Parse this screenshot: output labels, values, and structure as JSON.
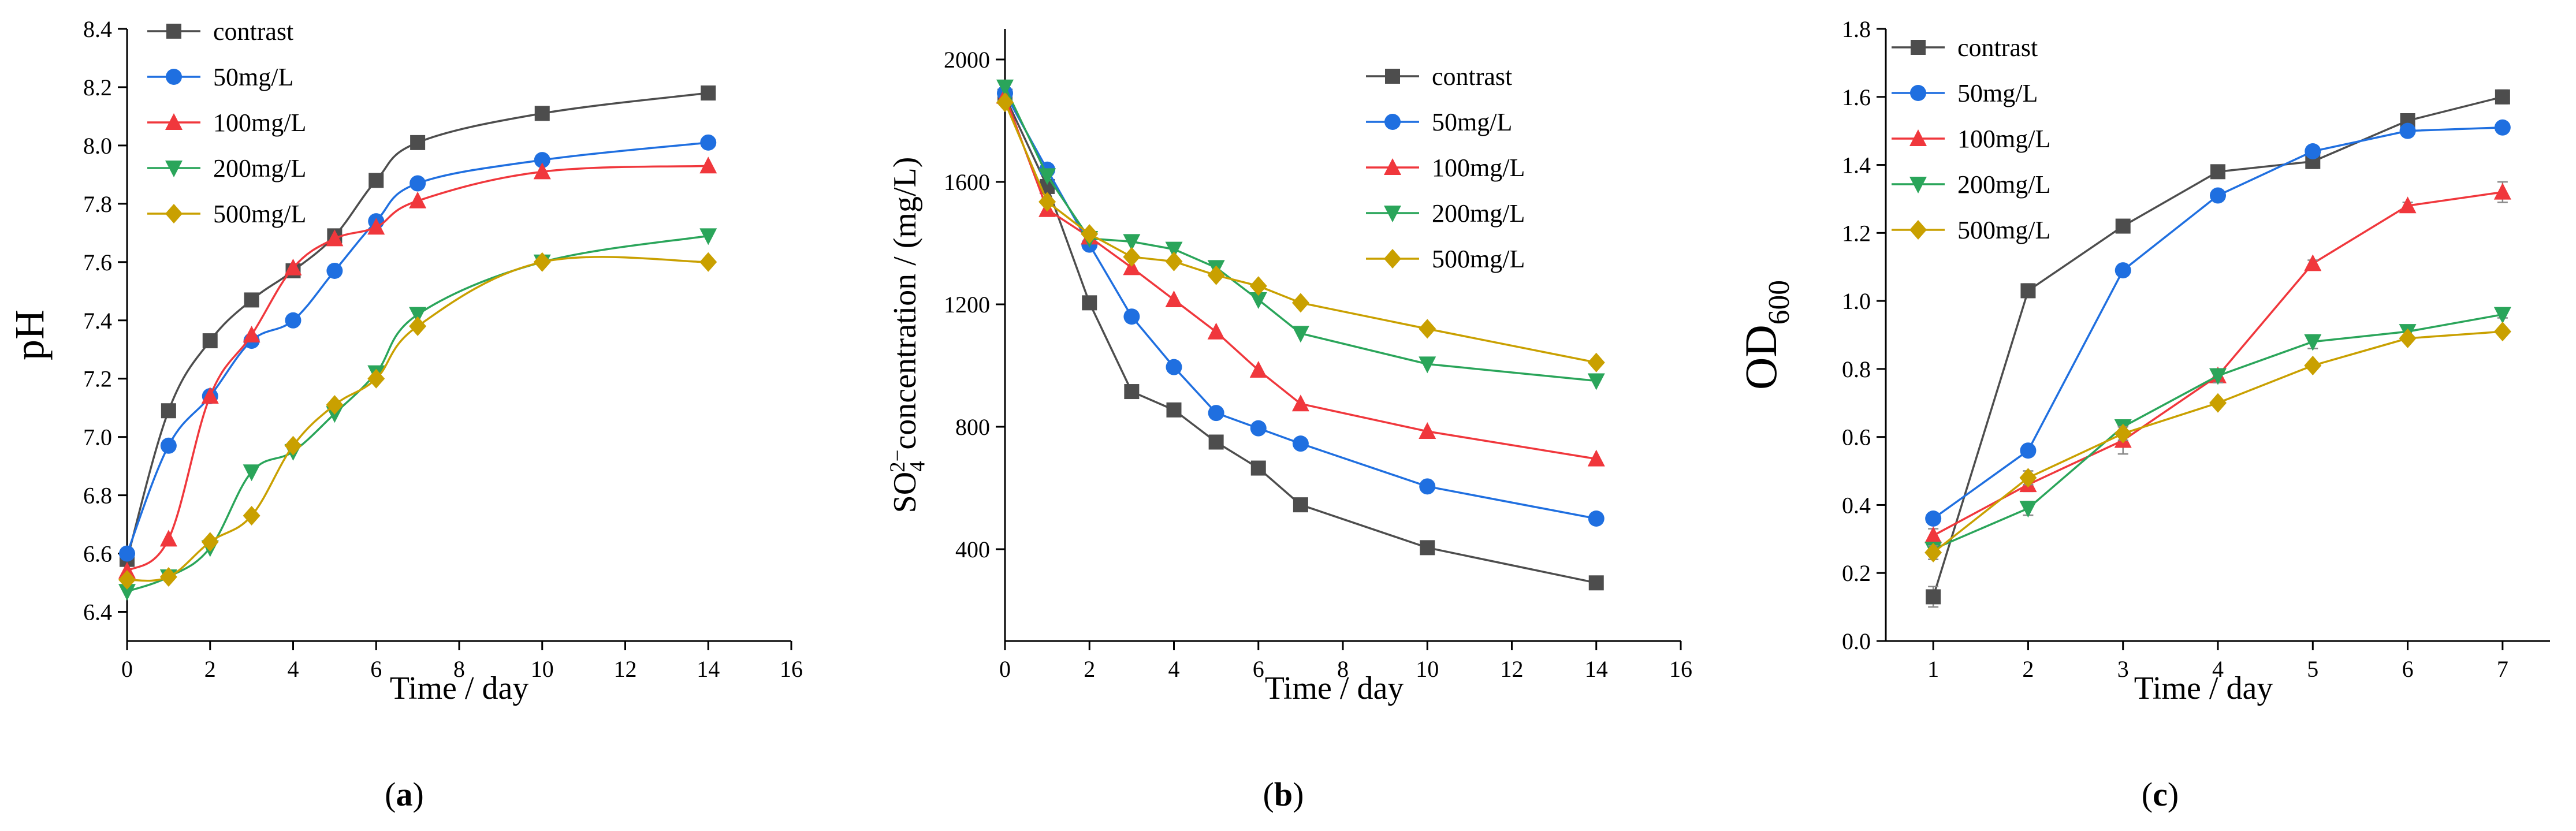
{
  "colors": {
    "contrast": "#4d4d4d",
    "50mg/L": "#1f6fe0",
    "100mg/L": "#f0373c",
    "200mg/L": "#2aa55a",
    "500mg/L": "#c9a000"
  },
  "markers": {
    "contrast": "square",
    "50mg/L": "circle",
    "100mg/L": "triangle-up",
    "200mg/L": "triangle-down",
    "500mg/L": "diamond"
  },
  "chart_data": [
    {
      "id": "a",
      "type": "line",
      "caption": "(a)",
      "caption_letter": "a",
      "xlabel": "Time / day",
      "ylabel": "pH",
      "xlim": [
        0,
        16
      ],
      "ylim": [
        6.3,
        8.4
      ],
      "xticks": [
        0,
        2,
        4,
        6,
        8,
        10,
        12,
        14,
        16
      ],
      "yticks": [
        6.4,
        6.6,
        6.8,
        7.0,
        7.2,
        7.4,
        7.6,
        7.8,
        8.0,
        8.2,
        8.4
      ],
      "xtick_labels": [
        "0",
        "2",
        "4",
        "6",
        "8",
        "10",
        "12",
        "14",
        "16"
      ],
      "ytick_labels": [
        "6.4",
        "6.6",
        "6.8",
        "7.0",
        "7.2",
        "7.4",
        "7.6",
        "7.8",
        "8.0",
        "8.2",
        "8.4"
      ],
      "x": [
        0,
        1,
        2,
        3,
        4,
        5,
        6,
        7,
        10,
        14
      ],
      "legend_position": "top-left",
      "series": [
        {
          "name": "contrast",
          "values": [
            6.58,
            7.09,
            7.33,
            7.47,
            7.57,
            7.69,
            7.88,
            8.01,
            8.11,
            8.18
          ]
        },
        {
          "name": "50mg/L",
          "values": [
            6.6,
            6.97,
            7.14,
            7.33,
            7.4,
            7.57,
            7.74,
            7.87,
            7.95,
            8.01
          ]
        },
        {
          "name": "100mg/L",
          "values": [
            6.54,
            6.65,
            7.14,
            7.35,
            7.58,
            7.68,
            7.72,
            7.81,
            7.91,
            7.93
          ]
        },
        {
          "name": "200mg/L",
          "values": [
            6.47,
            6.52,
            6.62,
            6.88,
            6.95,
            7.08,
            7.22,
            7.42,
            7.6,
            7.69
          ]
        },
        {
          "name": "500mg/L",
          "values": [
            6.51,
            6.52,
            6.64,
            6.73,
            6.97,
            7.11,
            7.2,
            7.38,
            7.6,
            7.6
          ]
        }
      ]
    },
    {
      "id": "b",
      "type": "line",
      "caption": "(b)",
      "caption_letter": "b",
      "xlabel": "Time / day",
      "ylabel": "SO₄²⁻concentration / (mg/L)",
      "ylabel_parts": {
        "base": "SO",
        "sub": "4",
        "sup": "2−",
        "rest": "concentration / (mg/L)"
      },
      "xlim": [
        0,
        16
      ],
      "ylim": [
        100,
        2100
      ],
      "xticks": [
        0,
        2,
        4,
        6,
        8,
        10,
        12,
        14,
        16
      ],
      "yticks": [
        400,
        800,
        1200,
        1600,
        2000
      ],
      "xtick_labels": [
        "0",
        "2",
        "4",
        "6",
        "8",
        "10",
        "12",
        "14",
        "16"
      ],
      "ytick_labels": [
        "400",
        "800",
        "1200",
        "1600",
        "2000"
      ],
      "x": [
        0,
        1,
        2,
        3,
        4,
        5,
        6,
        7,
        10,
        14
      ],
      "legend_position": "top-right",
      "series": [
        {
          "name": "contrast",
          "values": [
            1880,
            1585,
            1205,
            915,
            855,
            750,
            665,
            545,
            405,
            290
          ]
        },
        {
          "name": "50mg/L",
          "values": [
            1890,
            1640,
            1395,
            1160,
            995,
            845,
            795,
            745,
            605,
            500
          ]
        },
        {
          "name": "100mg/L",
          "values": [
            1880,
            1510,
            1420,
            1320,
            1215,
            1110,
            985,
            875,
            785,
            695
          ]
        },
        {
          "name": "200mg/L",
          "values": [
            1910,
            1620,
            1415,
            1405,
            1380,
            1320,
            1215,
            1105,
            1005,
            950
          ]
        },
        {
          "name": "500mg/L",
          "values": [
            1860,
            1535,
            1430,
            1355,
            1340,
            1295,
            1260,
            1205,
            1120,
            1010
          ]
        }
      ]
    },
    {
      "id": "c",
      "type": "line",
      "caption": "(c)",
      "caption_letter": "c",
      "xlabel": "Time / day",
      "ylabel": "OD600",
      "ylabel_parts": {
        "base": "OD",
        "sub": "600"
      },
      "xlim": [
        0.5,
        7.5
      ],
      "ylim": [
        0,
        1.8
      ],
      "xticks": [
        1,
        2,
        3,
        4,
        5,
        6,
        7
      ],
      "yticks": [
        0.0,
        0.2,
        0.4,
        0.6,
        0.8,
        1.0,
        1.2,
        1.4,
        1.6,
        1.8
      ],
      "xtick_labels": [
        "1",
        "2",
        "3",
        "4",
        "5",
        "6",
        "7"
      ],
      "ytick_labels": [
        "0.0",
        "0.2",
        "0.4",
        "0.6",
        "0.8",
        "1.0",
        "1.2",
        "1.4",
        "1.6",
        "1.8"
      ],
      "x": [
        1,
        2,
        3,
        4,
        5,
        6,
        7
      ],
      "legend_position": "top-left",
      "series": [
        {
          "name": "contrast",
          "values": [
            0.13,
            1.03,
            1.22,
            1.38,
            1.41,
            1.53,
            1.6
          ],
          "errors": [
            0.03,
            0.02,
            0.01,
            0.01,
            0.02,
            0.02,
            0.02
          ]
        },
        {
          "name": "50mg/L",
          "values": [
            0.36,
            0.56,
            1.09,
            1.31,
            1.44,
            1.5,
            1.51
          ],
          "errors": [
            0.01,
            0.01,
            0.01,
            0.01,
            0.01,
            0.01,
            0.01
          ]
        },
        {
          "name": "100mg/L",
          "values": [
            0.31,
            0.46,
            0.59,
            0.78,
            1.11,
            1.28,
            1.32
          ],
          "errors": [
            0.02,
            0.02,
            0.04,
            0.02,
            0.01,
            0.01,
            0.03
          ]
        },
        {
          "name": "200mg/L",
          "values": [
            0.27,
            0.39,
            0.63,
            0.78,
            0.88,
            0.91,
            0.96
          ],
          "errors": [
            0.02,
            0.02,
            0.02,
            0.02,
            0.02,
            0.01,
            0.01
          ]
        },
        {
          "name": "500mg/L",
          "values": [
            0.26,
            0.48,
            0.61,
            0.7,
            0.81,
            0.89,
            0.91
          ],
          "errors": [
            0.02,
            0.02,
            0.02,
            0.01,
            0.01,
            0.01,
            0.01
          ]
        }
      ]
    }
  ]
}
